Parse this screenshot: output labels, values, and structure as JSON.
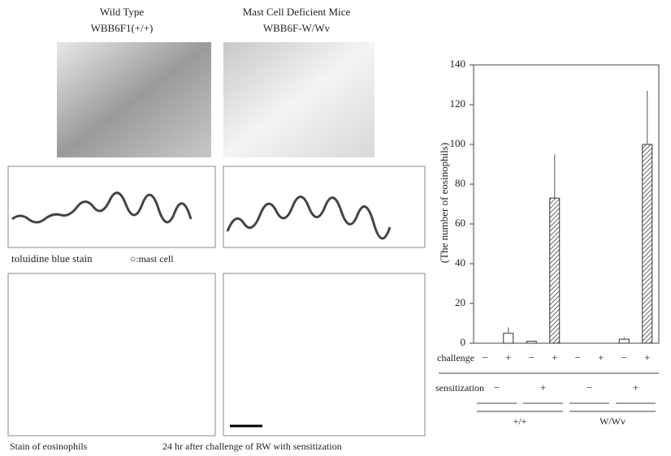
{
  "panels": {
    "wild_type": "Wild Type",
    "wild_type_strain": "WBB6F1(+/+)",
    "deficient": "Mast Cell Deficient Mice",
    "deficient_strain": "WBB6F-W/Wv",
    "stain1": "toluidine blue stain",
    "stain1_legend": "○:mast cell",
    "stain2": "Stain of eosinophils",
    "stain2_note": "24 hr after challenge of RW with sensitization"
  },
  "chart_data": {
    "type": "bar",
    "y_label": "(The number of eosinophils)",
    "categories": [
      "−",
      "+",
      "−",
      "+",
      "−",
      "+",
      "−",
      "+"
    ],
    "values": [
      0,
      5,
      1,
      73,
      0,
      0,
      2,
      100
    ],
    "errors": [
      0,
      3,
      0,
      22,
      0,
      0,
      1,
      27
    ],
    "hatched": [
      false,
      false,
      false,
      true,
      false,
      false,
      false,
      true
    ],
    "row_label_challenge": "challenge",
    "row_label_sensitization": "sensitization",
    "sensitization": [
      "−",
      "+",
      "−",
      "+"
    ],
    "groups": [
      "+/+",
      "W/Wv"
    ],
    "ylim": [
      0,
      140
    ],
    "yticks": [
      0,
      20,
      40,
      60,
      80,
      100,
      120,
      140
    ]
  }
}
